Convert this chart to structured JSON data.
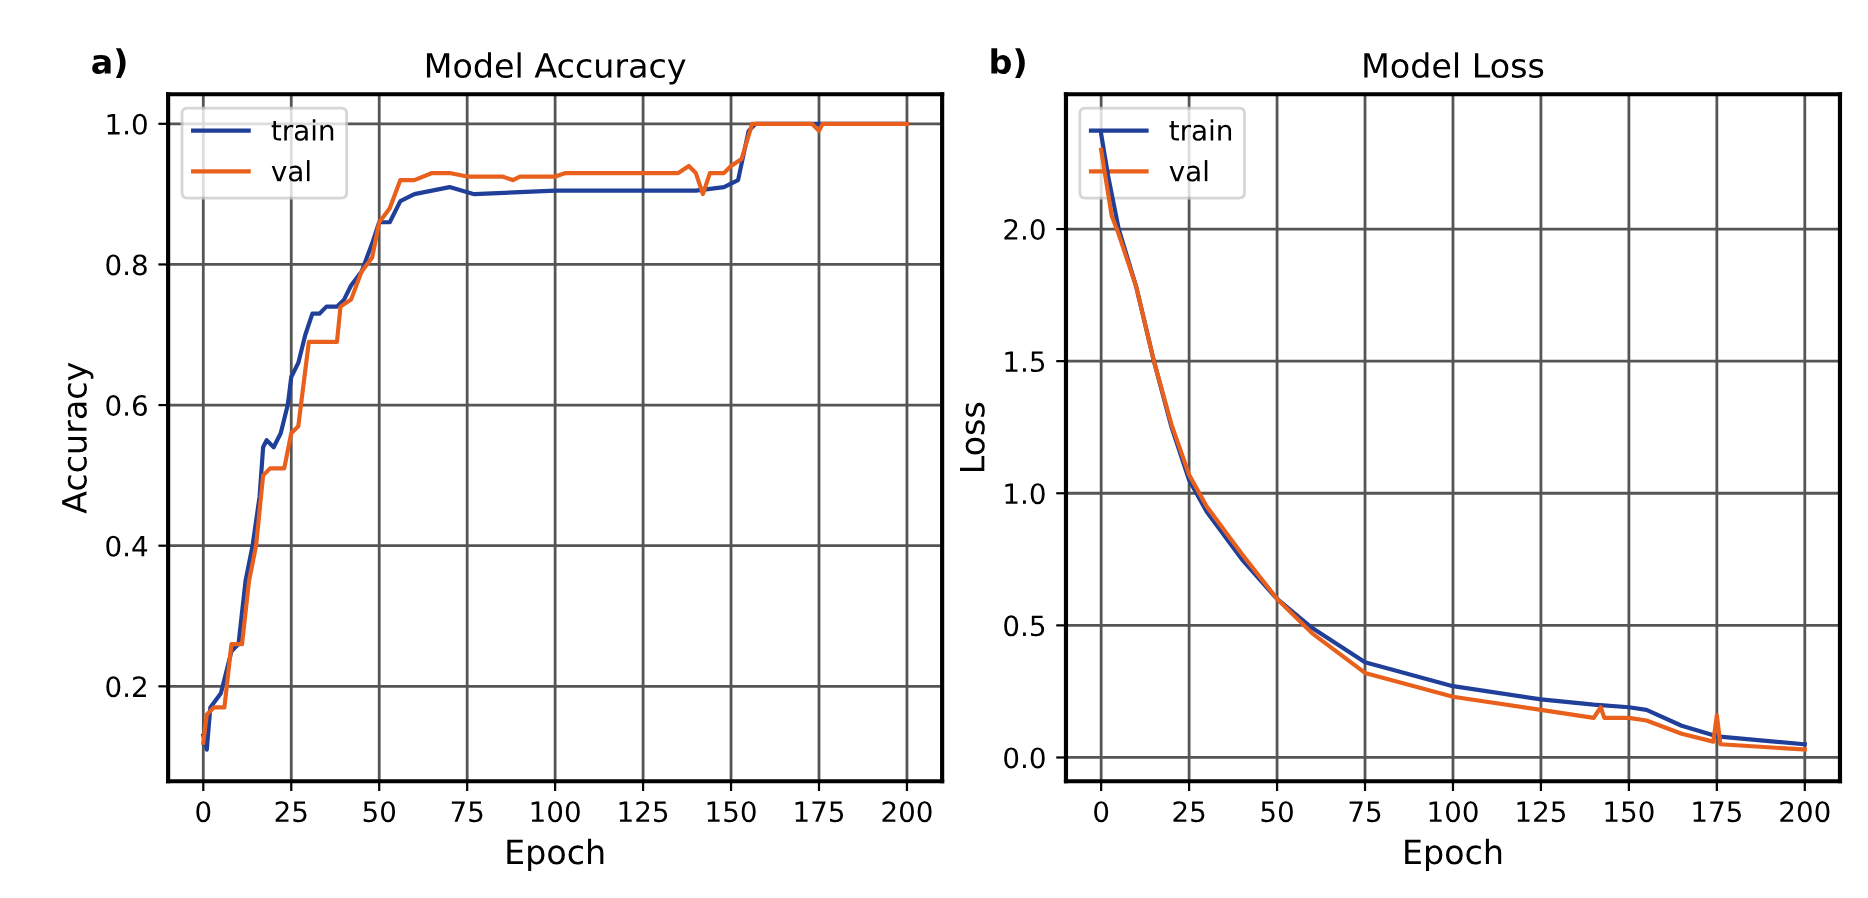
{
  "chart_data": [
    {
      "type": "line",
      "title": "Model Accuracy",
      "xlabel": "Epoch",
      "ylabel": "Accuracy",
      "annotations": [
        "a)"
      ],
      "xlim": [
        -10,
        210
      ],
      "ylim": [
        0.065,
        1.042
      ],
      "xticks": [
        0,
        25,
        50,
        75,
        100,
        125,
        150,
        175,
        200
      ],
      "yticks": [
        {
          "value": 0.2,
          "label": "0.2"
        },
        {
          "value": 0.4,
          "label": "0.4"
        },
        {
          "value": 0.6,
          "label": "0.6"
        },
        {
          "value": 0.8,
          "label": "0.8"
        },
        {
          "value": 1.0,
          "label": "1.0"
        }
      ],
      "grid": true,
      "legend": "top left",
      "line_style": "solid",
      "series": [
        {
          "name": "train",
          "color": "#1f3f99",
          "x": [
            0,
            1,
            2,
            5,
            8,
            10,
            12,
            14,
            16,
            17,
            18,
            20,
            22,
            24,
            25,
            27,
            29,
            31,
            33,
            35,
            38,
            40,
            42,
            45,
            48,
            50,
            53,
            56,
            60,
            70,
            77,
            100,
            140,
            148,
            152,
            155,
            157,
            175,
            200
          ],
          "values": [
            0.13,
            0.11,
            0.17,
            0.19,
            0.25,
            0.26,
            0.35,
            0.4,
            0.47,
            0.54,
            0.55,
            0.54,
            0.56,
            0.6,
            0.64,
            0.66,
            0.7,
            0.73,
            0.73,
            0.74,
            0.74,
            0.75,
            0.77,
            0.79,
            0.83,
            0.86,
            0.86,
            0.89,
            0.9,
            0.91,
            0.9,
            0.905,
            0.905,
            0.91,
            0.92,
            0.99,
            1.0,
            1.0,
            1.0
          ]
        },
        {
          "name": "val",
          "color": "#e8601c",
          "x": [
            0,
            1,
            3,
            6,
            8,
            11,
            13,
            15,
            17,
            19,
            23,
            25,
            27,
            30,
            33,
            38,
            39,
            42,
            45,
            48,
            50,
            53,
            56,
            60,
            65,
            70,
            75,
            85,
            88,
            90,
            100,
            103,
            110,
            120,
            127,
            135,
            138,
            140,
            142,
            144,
            148,
            150,
            153,
            156,
            173,
            175,
            176,
            200
          ],
          "values": [
            0.12,
            0.16,
            0.17,
            0.17,
            0.26,
            0.26,
            0.35,
            0.4,
            0.5,
            0.51,
            0.51,
            0.56,
            0.57,
            0.69,
            0.69,
            0.69,
            0.74,
            0.75,
            0.79,
            0.81,
            0.86,
            0.88,
            0.92,
            0.92,
            0.93,
            0.93,
            0.925,
            0.925,
            0.92,
            0.925,
            0.925,
            0.93,
            0.93,
            0.93,
            0.93,
            0.93,
            0.94,
            0.93,
            0.9,
            0.93,
            0.93,
            0.94,
            0.95,
            1.0,
            1.0,
            0.99,
            1.0,
            1.0
          ]
        }
      ]
    },
    {
      "type": "line",
      "title": "Model Loss",
      "xlabel": "Epoch",
      "ylabel": "Loss",
      "annotations": [
        "b)"
      ],
      "xlim": [
        -10,
        210
      ],
      "ylim": [
        -0.09,
        2.51
      ],
      "xticks": [
        0,
        25,
        50,
        75,
        100,
        125,
        150,
        175,
        200
      ],
      "yticks": [
        {
          "value": 0.0,
          "label": "0.0"
        },
        {
          "value": 0.5,
          "label": "0.5"
        },
        {
          "value": 1.0,
          "label": "1.0"
        },
        {
          "value": 1.5,
          "label": "1.5"
        },
        {
          "value": 2.0,
          "label": "2.0"
        }
      ],
      "grid": true,
      "legend": "top left",
      "line_style": "solid",
      "series": [
        {
          "name": "train",
          "color": "#1f3f99",
          "x": [
            0,
            2,
            5,
            10,
            15,
            20,
            25,
            30,
            40,
            50,
            60,
            75,
            100,
            125,
            140,
            150,
            155,
            165,
            175,
            200
          ],
          "values": [
            2.36,
            2.2,
            2.0,
            1.78,
            1.5,
            1.25,
            1.05,
            0.93,
            0.75,
            0.6,
            0.49,
            0.36,
            0.27,
            0.22,
            0.2,
            0.19,
            0.18,
            0.12,
            0.08,
            0.05
          ]
        },
        {
          "name": "val",
          "color": "#e8601c",
          "x": [
            0,
            3,
            5,
            10,
            15,
            20,
            25,
            30,
            40,
            50,
            60,
            75,
            100,
            125,
            140,
            142,
            143,
            150,
            155,
            165,
            174,
            175,
            176,
            200
          ],
          "values": [
            2.3,
            2.05,
            1.98,
            1.78,
            1.5,
            1.26,
            1.07,
            0.95,
            0.77,
            0.6,
            0.47,
            0.32,
            0.23,
            0.18,
            0.15,
            0.19,
            0.15,
            0.15,
            0.14,
            0.09,
            0.06,
            0.16,
            0.05,
            0.03
          ]
        }
      ]
    }
  ]
}
